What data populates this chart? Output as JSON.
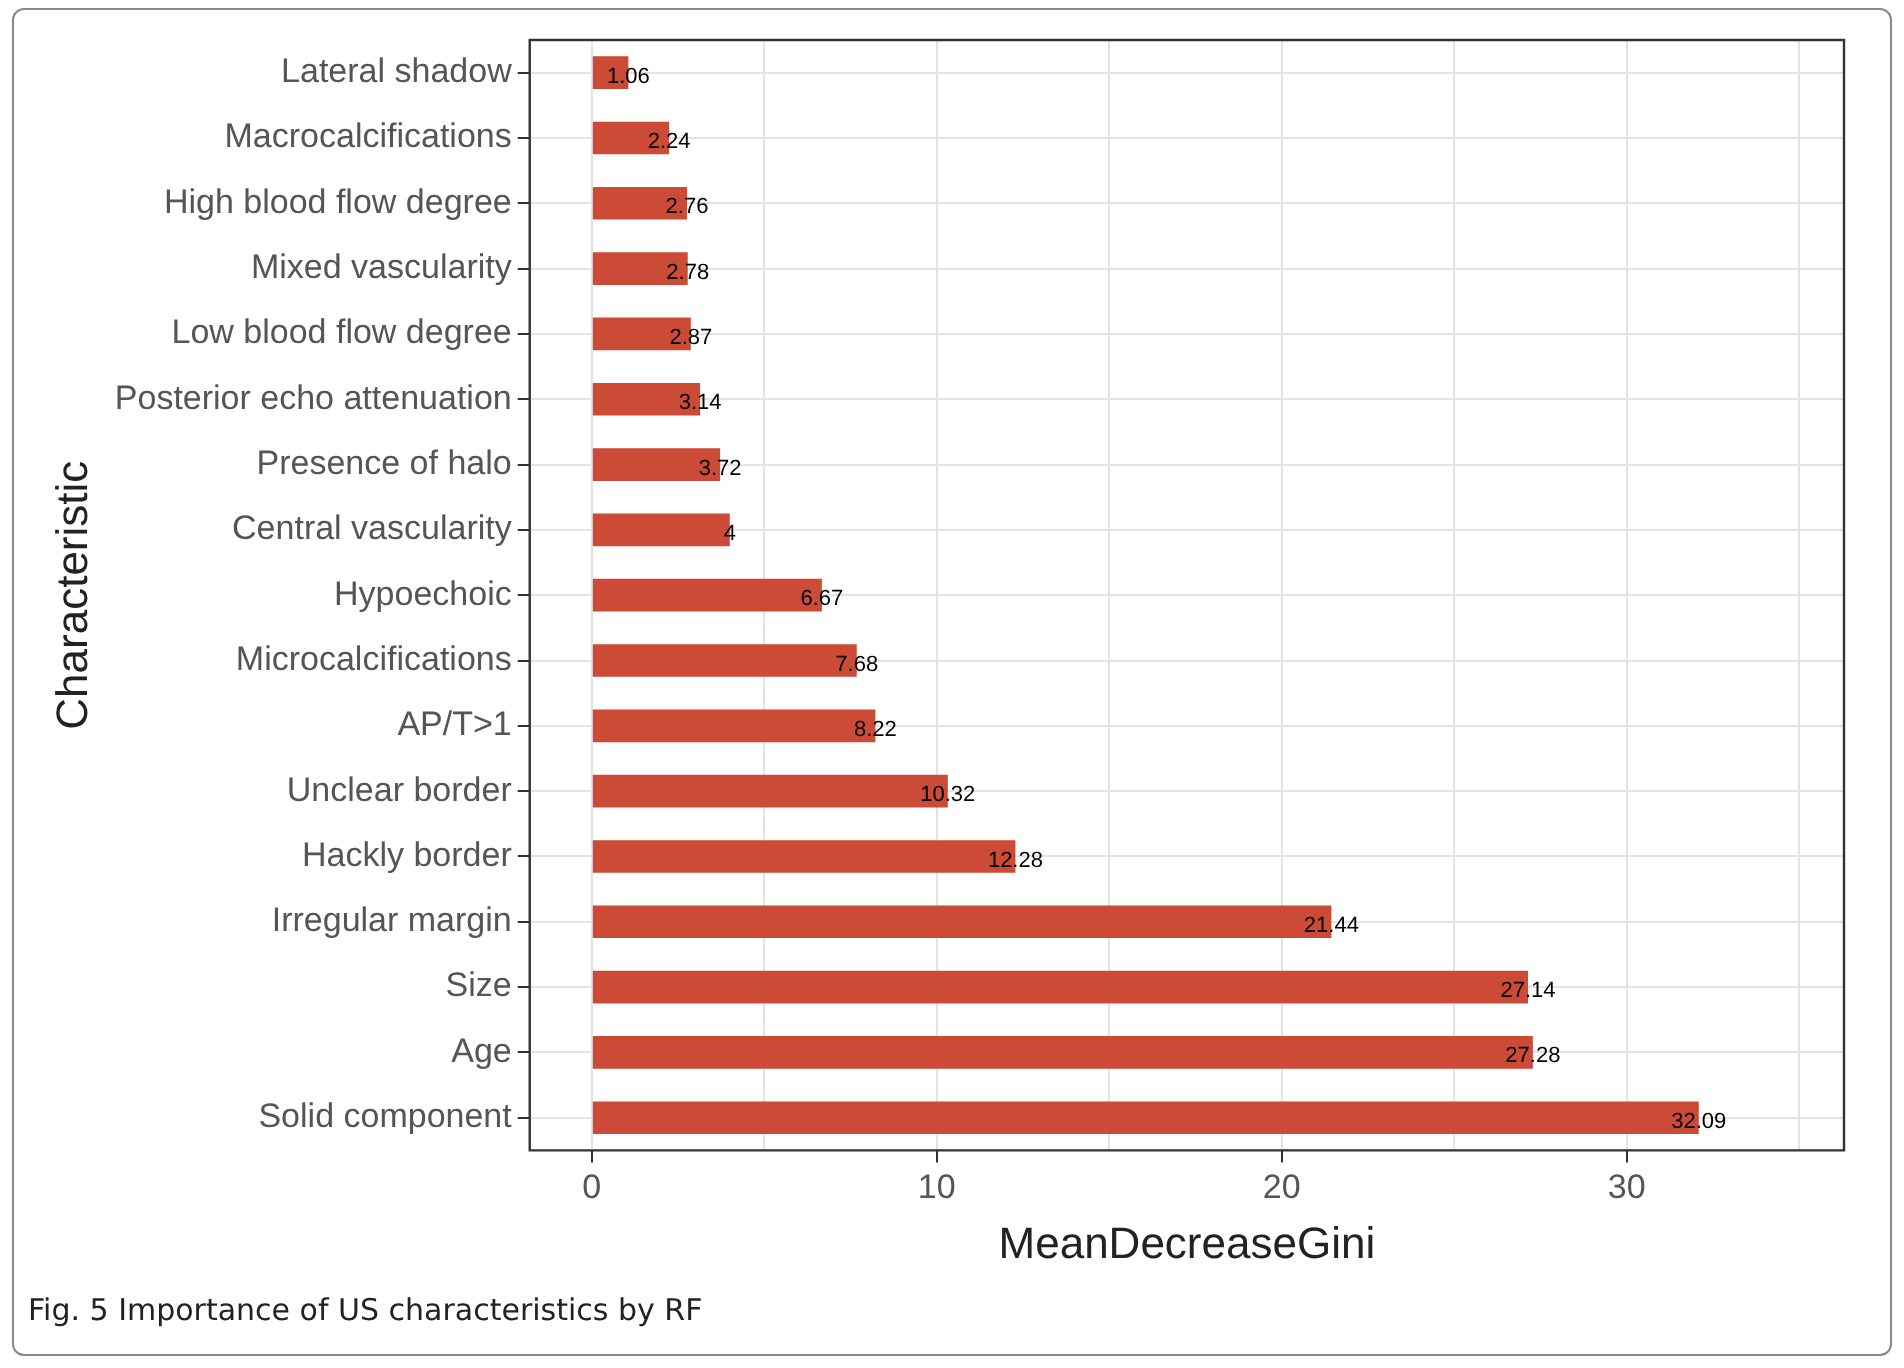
{
  "chart_data": {
    "type": "bar",
    "orientation": "horizontal",
    "xlabel": "MeanDecreaseGini",
    "ylabel": "Characteristic",
    "categories": [
      "Lateral shadow",
      "Macrocalcifications",
      "High blood flow degree",
      "Mixed vascularity",
      "Low blood flow degree",
      "Posterior echo attenuation",
      "Presence of halo",
      "Central vascularity",
      "Hypoechoic",
      "Microcalcifications",
      "AP/T>1",
      "Unclear border",
      "Hackly border",
      "Irregular margin",
      "Size",
      "Age",
      "Solid component"
    ],
    "values": [
      1.06,
      2.24,
      2.76,
      2.78,
      2.87,
      3.14,
      3.72,
      4,
      6.67,
      7.68,
      8.22,
      10.32,
      12.28,
      21.44,
      27.14,
      27.28,
      32.09
    ],
    "color": "#cc4b37",
    "xlim": [
      -1.8,
      36.3
    ],
    "xticks": [
      0,
      {
        "value": 5,
        "label": null
      },
      10,
      {
        "value": 15,
        "label": null
      },
      20,
      {
        "value": 25,
        "label": null
      },
      30,
      {
        "value": 35,
        "label": null
      }
    ],
    "grid": true,
    "data_labels": true,
    "legend": false,
    "annotations": [
      "Fig. 5  Importance of US characteristics by RF"
    ]
  }
}
